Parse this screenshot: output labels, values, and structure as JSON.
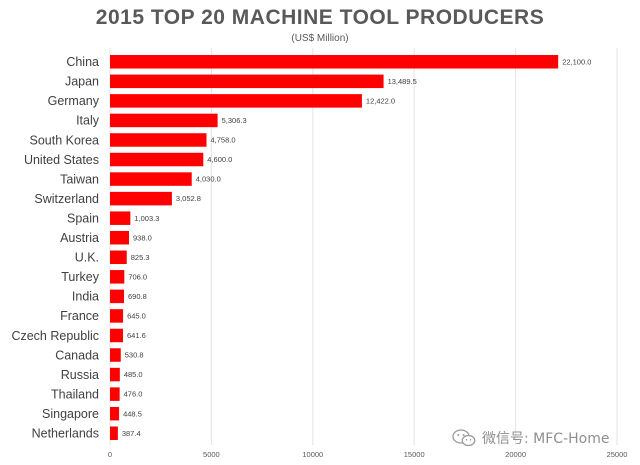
{
  "chart_data": {
    "type": "bar",
    "orientation": "horizontal",
    "title": "2015 TOP 20 MACHINE TOOL PRODUCERS",
    "subtitle": "(US$ Million)",
    "xlabel": "",
    "ylabel": "",
    "xlim": [
      0,
      25000
    ],
    "xticks": [
      0,
      5000,
      10000,
      15000,
      20000,
      25000
    ],
    "grid": "vertical",
    "legend": "none",
    "bar_color": "#ff0000",
    "categories": [
      "China",
      "Japan",
      "Germany",
      "Italy",
      "South Korea",
      "United States",
      "Taiwan",
      "Switzerland",
      "Spain",
      "Austria",
      "U.K.",
      "Turkey",
      "India",
      "France",
      "Czech Republic",
      "Canada",
      "Russia",
      "Thailand",
      "Singapore",
      "Netherlands"
    ],
    "values": [
      22100.0,
      13489.5,
      12422.0,
      5306.3,
      4758.0,
      4600.0,
      4030.0,
      3052.8,
      1003.3,
      938.0,
      825.3,
      706.0,
      690.8,
      645.0,
      641.6,
      530.8,
      485.0,
      476.0,
      448.5,
      387.4
    ],
    "data_labels": [
      "22,100.0",
      "13,489.5",
      "12,422.0",
      "5,306.3",
      "4,758.0",
      "4,600.0",
      "4,030.0",
      "3,052.8",
      "1,003.3",
      "938.0",
      "825.3",
      "706.0",
      "690.8",
      "645.0",
      "641.6",
      "530.8",
      "485.0",
      "476.0",
      "448.5",
      "387.4"
    ]
  },
  "watermark": {
    "icon": "wechat-icon",
    "text": "微信号: MFC-Home"
  }
}
